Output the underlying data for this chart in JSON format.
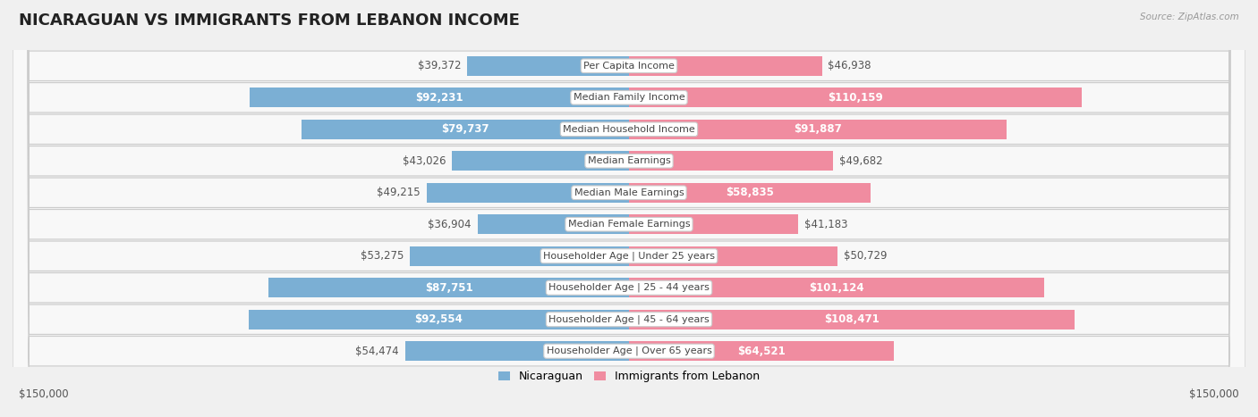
{
  "title": "NICARAGUAN VS IMMIGRANTS FROM LEBANON INCOME",
  "source": "Source: ZipAtlas.com",
  "categories": [
    "Per Capita Income",
    "Median Family Income",
    "Median Household Income",
    "Median Earnings",
    "Median Male Earnings",
    "Median Female Earnings",
    "Householder Age | Under 25 years",
    "Householder Age | 25 - 44 years",
    "Householder Age | 45 - 64 years",
    "Householder Age | Over 65 years"
  ],
  "nicaraguan_values": [
    39372,
    92231,
    79737,
    43026,
    49215,
    36904,
    53275,
    87751,
    92554,
    54474
  ],
  "lebanon_values": [
    46938,
    110159,
    91887,
    49682,
    58835,
    41183,
    50729,
    101124,
    108471,
    64521
  ],
  "nicaraguan_labels": [
    "$39,372",
    "$92,231",
    "$79,737",
    "$43,026",
    "$49,215",
    "$36,904",
    "$53,275",
    "$87,751",
    "$92,554",
    "$54,474"
  ],
  "lebanon_labels": [
    "$46,938",
    "$110,159",
    "$91,887",
    "$49,682",
    "$58,835",
    "$41,183",
    "$50,729",
    "$101,124",
    "$108,471",
    "$64,521"
  ],
  "nicaraguan_color": "#7bafd4",
  "lebanon_color": "#f08ca0",
  "max_value": 150000,
  "legend_nicaraguan": "Nicaraguan",
  "legend_lebanon": "Immigrants from Lebanon",
  "x_label_left": "$150,000",
  "x_label_right": "$150,000",
  "bg_color": "#f0f0f0",
  "row_bg_color": "#f8f8f8",
  "row_alt_bg": "#eeeeee",
  "title_fontsize": 13,
  "label_fontsize": 8.5,
  "category_fontsize": 8,
  "white_threshold": 55000
}
